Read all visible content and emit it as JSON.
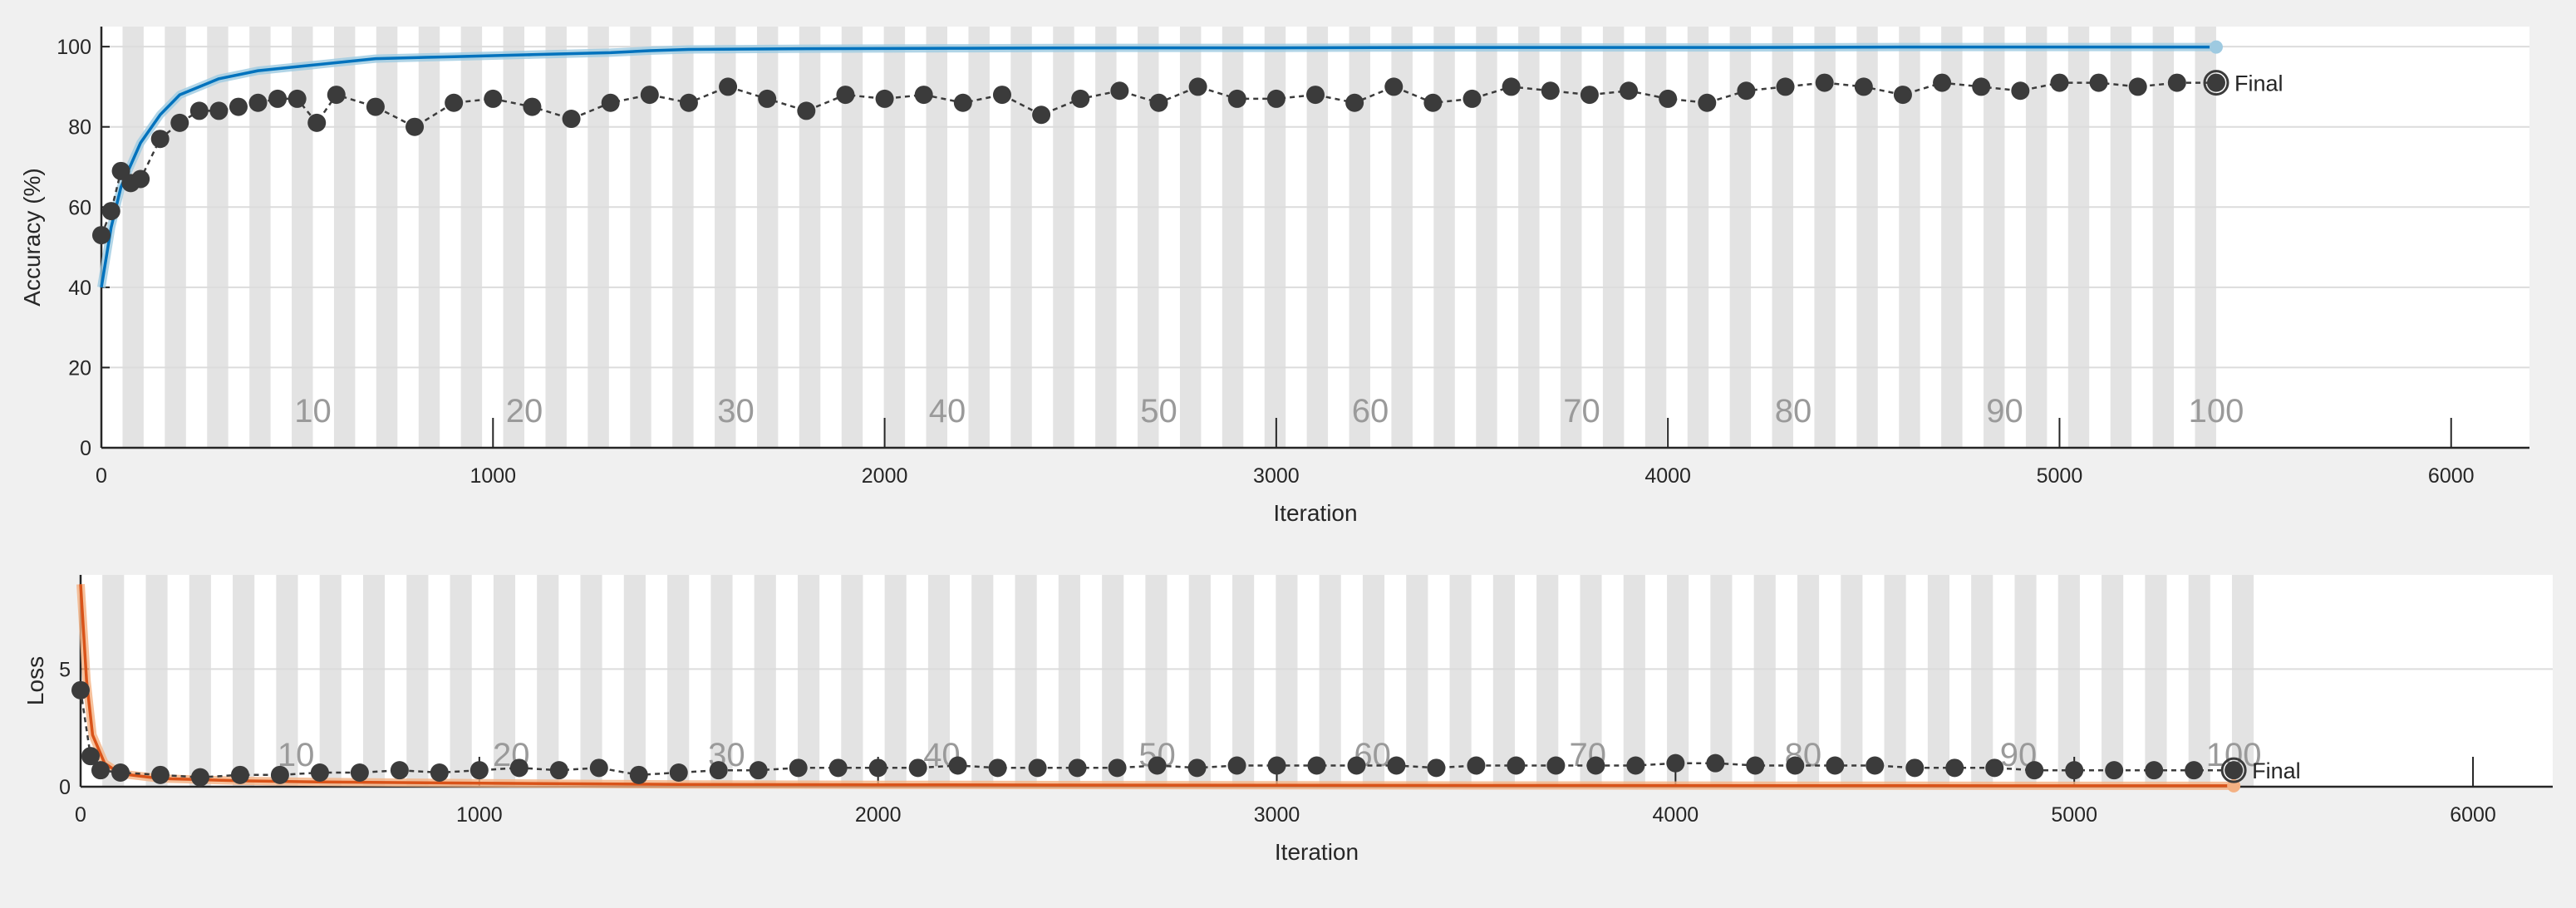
{
  "colors": {
    "figure_bg": "#f0f0f0",
    "axes_bg": "#ffffff",
    "epoch_band": "#e3e3e3",
    "grid": "#dcdcdc",
    "axis": "#262626",
    "accuracy_smoothed": "#0072bd",
    "accuracy_raw": "#9ecae1",
    "loss_smoothed": "#d95319",
    "loss_raw": "#f4b183",
    "validation_marker": "#3b3b3b"
  },
  "chart_data": [
    {
      "type": "line",
      "panel": "accuracy",
      "xlabel": "Iteration",
      "ylabel": "Accuracy (%)",
      "xlim": [
        0,
        6200
      ],
      "ylim": [
        0,
        105
      ],
      "xticks": [
        0,
        1000,
        2000,
        3000,
        4000,
        5000,
        6000
      ],
      "yticks": [
        0,
        20,
        40,
        60,
        80,
        100
      ],
      "grid": true,
      "epoch_labels": [
        10,
        20,
        30,
        40,
        50,
        60,
        70,
        80,
        90,
        100
      ],
      "epoch_label_iterations": [
        540,
        1080,
        1620,
        2160,
        2700,
        3240,
        3780,
        4320,
        4860,
        5400
      ],
      "epoch_band_count": 50,
      "final_label": "Final",
      "series": [
        {
          "role": "training_smoothed",
          "x": [
            0,
            25,
            50,
            100,
            150,
            200,
            300,
            400,
            500,
            700,
            900,
            1100,
            1300,
            1400,
            1500,
            1800,
            2200,
            2600,
            3000,
            3400,
            3800,
            4200,
            4600,
            5000,
            5400
          ],
          "values": [
            40,
            55,
            65,
            76,
            83,
            88,
            92,
            94,
            95,
            97,
            97.5,
            98,
            98.5,
            99,
            99.3,
            99.5,
            99.6,
            99.7,
            99.7,
            99.8,
            99.8,
            99.8,
            99.9,
            99.9,
            99.9
          ]
        },
        {
          "role": "training_raw",
          "x": [
            0,
            25,
            50,
            100,
            150,
            200,
            300,
            400,
            500,
            700,
            900,
            1100,
            1300,
            1400,
            1500,
            1800,
            2200,
            2600,
            3000,
            3400,
            3800,
            4200,
            4600,
            5000,
            5400
          ],
          "values": [
            40,
            55,
            65,
            76,
            83,
            88,
            92,
            94,
            95,
            97,
            97.5,
            98,
            98.5,
            99,
            99.3,
            99.5,
            99.6,
            99.7,
            99.7,
            99.8,
            99.8,
            99.8,
            99.9,
            99.9,
            99.9
          ]
        },
        {
          "role": "validation",
          "x": [
            0,
            25,
            50,
            75,
            100,
            150,
            200,
            250,
            300,
            350,
            400,
            450,
            500,
            550,
            600,
            700,
            800,
            900,
            1000,
            1100,
            1200,
            1300,
            1400,
            1500,
            1600,
            1700,
            1800,
            1900,
            2000,
            2100,
            2200,
            2300,
            2400,
            2500,
            2600,
            2700,
            2800,
            2900,
            3000,
            3100,
            3200,
            3300,
            3400,
            3500,
            3600,
            3700,
            3800,
            3900,
            4000,
            4100,
            4200,
            4300,
            4400,
            4500,
            4600,
            4700,
            4800,
            4900,
            5000,
            5100,
            5200,
            5300,
            5400
          ],
          "values": [
            53,
            59,
            69,
            66,
            67,
            77,
            81,
            84,
            84,
            85,
            86,
            87,
            87,
            81,
            88,
            85,
            80,
            86,
            87,
            85,
            82,
            86,
            88,
            86,
            90,
            87,
            84,
            88,
            87,
            88,
            86,
            88,
            83,
            87,
            89,
            86,
            90,
            87,
            87,
            88,
            86,
            90,
            86,
            87,
            90,
            89,
            88,
            89,
            87,
            86,
            89,
            90,
            91,
            90,
            88,
            91,
            90,
            89,
            91,
            91,
            90,
            91,
            91
          ]
        }
      ]
    },
    {
      "type": "line",
      "panel": "loss",
      "xlabel": "Iteration",
      "ylabel": "Loss",
      "xlim": [
        0,
        6200
      ],
      "ylim": [
        0,
        9
      ],
      "xticks": [
        0,
        1000,
        2000,
        3000,
        4000,
        5000,
        6000
      ],
      "yticks": [
        0,
        5
      ],
      "grid": true,
      "epoch_labels": [
        10,
        20,
        30,
        40,
        50,
        60,
        70,
        80,
        90,
        100
      ],
      "epoch_label_iterations": [
        540,
        1080,
        1620,
        2160,
        2700,
        3240,
        3780,
        4320,
        4860,
        5400
      ],
      "epoch_band_count": 50,
      "final_label": "Final",
      "series": [
        {
          "role": "training_smoothed",
          "x": [
            0,
            15,
            30,
            60,
            100,
            200,
            400,
            600,
            1000,
            1500,
            2000,
            3000,
            4000,
            5000,
            5400
          ],
          "values": [
            8.6,
            4.5,
            2.2,
            1.0,
            0.55,
            0.35,
            0.25,
            0.2,
            0.15,
            0.1,
            0.08,
            0.06,
            0.05,
            0.04,
            0.04
          ]
        },
        {
          "role": "training_raw",
          "x": [
            0,
            15,
            30,
            60,
            100,
            200,
            400,
            600,
            1000,
            1500,
            2000,
            3000,
            4000,
            5000,
            5400
          ],
          "values": [
            8.6,
            4.5,
            2.2,
            1.0,
            0.55,
            0.35,
            0.25,
            0.2,
            0.15,
            0.1,
            0.08,
            0.06,
            0.05,
            0.04,
            0.04
          ]
        },
        {
          "role": "validation",
          "x": [
            0,
            25,
            50,
            100,
            200,
            300,
            400,
            500,
            600,
            700,
            800,
            900,
            1000,
            1100,
            1200,
            1300,
            1400,
            1500,
            1600,
            1700,
            1800,
            1900,
            2000,
            2100,
            2200,
            2300,
            2400,
            2500,
            2600,
            2700,
            2800,
            2900,
            3000,
            3100,
            3200,
            3300,
            3400,
            3500,
            3600,
            3700,
            3800,
            3900,
            4000,
            4100,
            4200,
            4300,
            4400,
            4500,
            4600,
            4700,
            4800,
            4900,
            5000,
            5100,
            5200,
            5300,
            5400
          ],
          "values": [
            4.1,
            1.3,
            0.7,
            0.6,
            0.5,
            0.4,
            0.5,
            0.5,
            0.6,
            0.6,
            0.7,
            0.6,
            0.7,
            0.8,
            0.7,
            0.8,
            0.5,
            0.6,
            0.7,
            0.7,
            0.8,
            0.8,
            0.8,
            0.8,
            0.9,
            0.8,
            0.8,
            0.8,
            0.8,
            0.9,
            0.8,
            0.9,
            0.9,
            0.9,
            0.9,
            0.9,
            0.8,
            0.9,
            0.9,
            0.9,
            0.9,
            0.9,
            1.0,
            1.0,
            0.9,
            0.9,
            0.9,
            0.9,
            0.8,
            0.8,
            0.8,
            0.7,
            0.7,
            0.7,
            0.7,
            0.7,
            0.7
          ]
        }
      ]
    }
  ]
}
